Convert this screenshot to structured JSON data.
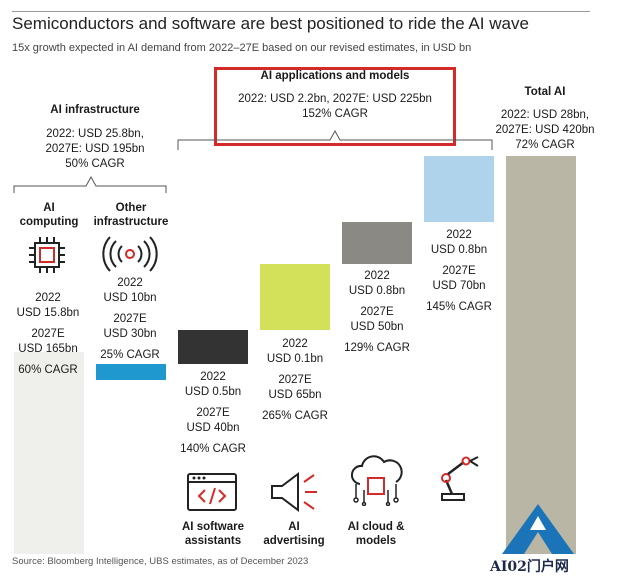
{
  "title": "Semiconductors and software are best positioned to ride the AI wave",
  "subtitle": "15x growth expected in AI demand from 2022–27E based on our revised estimates, in USD bn",
  "source": "Source: Bloomberg Intelligence, UBS estimates, as of December 2023",
  "groups": {
    "infrastructure": {
      "title": "AI infrastructure",
      "line1": "2022: USD 25.8bn,",
      "line2": "2027E: USD 195bn",
      "line3": "50% CAGR"
    },
    "applications": {
      "title": "AI applications and models",
      "line1": "2022: USD 2.2bn, 2027E: USD 225bn",
      "line2": "152% CAGR"
    },
    "total": {
      "title": "Total AI",
      "line1": "2022: USD 28bn,",
      "line2": "2027E: USD 420bn",
      "line3": "72% CAGR"
    }
  },
  "columns": [
    {
      "label1": "AI",
      "label2": "computing",
      "y2022": "2022",
      "v2022": "USD 15.8bn",
      "y2027": "2027E",
      "v2027": "USD 165bn",
      "cagr": "60% CAGR",
      "icon": "chip-icon"
    },
    {
      "label1": "Other",
      "label2": "infrastructure",
      "y2022": "2022",
      "v2022": "USD 10bn",
      "y2027": "2027E",
      "v2027": "USD 30bn",
      "cagr": "25% CAGR",
      "icon": "wireless-signal-icon"
    },
    {
      "label1": "AI software",
      "label2": "assistants",
      "y2022": "2022",
      "v2022": "USD 0.5bn",
      "y2027": "2027E",
      "v2027": "USD 40bn",
      "cagr": "140% CAGR",
      "icon": "code-window-icon"
    },
    {
      "label1": "AI",
      "label2": "advertising",
      "y2022": "2022",
      "v2022": "USD 0.1bn",
      "y2027": "2027E",
      "v2027": "USD 65bn",
      "cagr": "265% CAGR",
      "icon": "megaphone-icon"
    },
    {
      "label1": "AI cloud &",
      "label2": "models",
      "y2022": "2022",
      "v2022": "USD 0.8bn",
      "y2027": "2027E",
      "v2027": "USD 50bn",
      "cagr": "129% CAGR",
      "icon": "cloud-chip-icon"
    },
    {
      "label1": "",
      "label2": "",
      "y2022": "2022",
      "v2022": "USD 0.8bn",
      "y2027": "2027E",
      "v2027": "USD 70bn",
      "cagr": "145% CAGR",
      "icon": "robot-arm-icon"
    }
  ],
  "colors": {
    "ai_computing": "#efefeb",
    "other_infrastructure": "#1f97cf",
    "ai_software": "#333333",
    "ai_advertising": "#d3e05a",
    "ai_cloud": "#8a8984",
    "robotics": "#aed3ea",
    "total": "#b9b6a6",
    "highlight": "#d42a2a"
  },
  "chart_data": {
    "type": "bar",
    "title": "Semiconductors and software are best positioned to ride the AI wave",
    "subtitle": "15x growth expected in AI demand from 2022–27E based on our revised estimates, in USD bn",
    "categories": [
      "AI computing",
      "Other infrastructure",
      "AI software assistants",
      "AI advertising",
      "AI cloud & models",
      "",
      "Total AI"
    ],
    "series": [
      {
        "name": "2022",
        "values": [
          15.8,
          10,
          0.5,
          0.1,
          0.8,
          0.8,
          28
        ]
      },
      {
        "name": "2027E",
        "values": [
          165,
          30,
          40,
          65,
          50,
          70,
          420
        ]
      }
    ],
    "cagr_percent": [
      60,
      25,
      140,
      265,
      129,
      145,
      72
    ],
    "group_totals": [
      {
        "name": "AI infrastructure",
        "v2022": 25.8,
        "v2027": 195,
        "cagr": 50
      },
      {
        "name": "AI applications and models",
        "v2022": 2.2,
        "v2027": 225,
        "cagr": 152
      },
      {
        "name": "Total AI",
        "v2022": 28,
        "v2027": 420,
        "cagr": 72
      }
    ],
    "ylim": [
      0,
      420
    ],
    "grid": false,
    "legend": "none"
  },
  "brand": {
    "text": "AI02门户网"
  }
}
